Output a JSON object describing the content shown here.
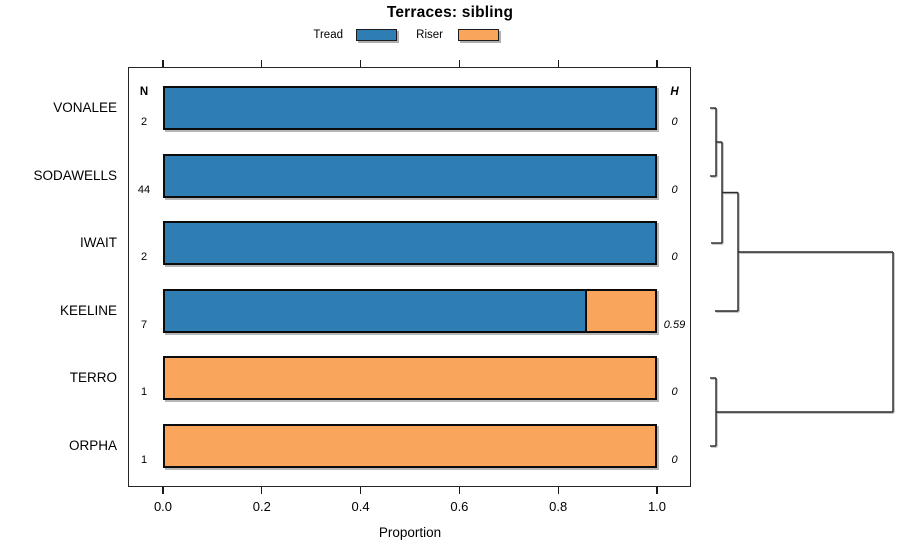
{
  "title": "Terraces: sibling",
  "legend": {
    "items": [
      {
        "label": "Tread",
        "color": "#2e7db3"
      },
      {
        "label": "Riser",
        "color": "#f9a65c"
      }
    ]
  },
  "columns": {
    "n_header": "N",
    "h_header": "H"
  },
  "x_axis": {
    "label": "Proportion",
    "tick_labels": [
      "0.0",
      "0.2",
      "0.4",
      "0.6",
      "0.8",
      "1.0"
    ],
    "tick_values": [
      0,
      0.2,
      0.4,
      0.6,
      0.8,
      1.0
    ],
    "range": [
      0,
      1
    ]
  },
  "chart_data": {
    "type": "bar",
    "orientation": "horizontal",
    "stacked": true,
    "title": "Terraces: sibling",
    "xlabel": "Proportion",
    "xlim": [
      0,
      1
    ],
    "grid": false,
    "series_names": [
      "Tread",
      "Riser"
    ],
    "categories": [
      "VONALEE",
      "SODAWELLS",
      "IWAIT",
      "KEELINE",
      "TERRO",
      "ORPHA"
    ],
    "rows": [
      {
        "label": "VONALEE",
        "n": "2",
        "tread": 1,
        "riser": 0,
        "h": "0"
      },
      {
        "label": "SODAWELLS",
        "n": "44",
        "tread": 1,
        "riser": 0,
        "h": "0"
      },
      {
        "label": "IWAIT",
        "n": "2",
        "tread": 1,
        "riser": 0,
        "h": "0"
      },
      {
        "label": "KEELINE",
        "n": "7",
        "tread": 0.857,
        "riser": 0.143,
        "h": "0.59"
      },
      {
        "label": "TERRO",
        "n": "1",
        "tread": 0,
        "riser": 1,
        "h": "0"
      },
      {
        "label": "ORPHA",
        "n": "1",
        "tread": 0,
        "riser": 1,
        "h": "0"
      }
    ],
    "colors": {
      "tread": "#2e7db3",
      "riser": "#f9a65c"
    },
    "dendrogram": {
      "hierarchy": "((((VONALEE,SODAWELLS),IWAIT),KEELINE),(TERRO,ORPHA))",
      "segments": [
        [
          710,
          108,
          716,
          108
        ],
        [
          710,
          176,
          716,
          176
        ],
        [
          716,
          108,
          716,
          176
        ],
        [
          716,
          142,
          722,
          142
        ],
        [
          722,
          142,
          722,
          243
        ],
        [
          711,
          243,
          722,
          243
        ],
        [
          722,
          192.5,
          738,
          192.5
        ],
        [
          738,
          192.5,
          738,
          311
        ],
        [
          715,
          311,
          738,
          311
        ],
        [
          738,
          252,
          893,
          252
        ],
        [
          710,
          378,
          716,
          378
        ],
        [
          710,
          446,
          716,
          446
        ],
        [
          716,
          378,
          716,
          446
        ],
        [
          716,
          412,
          893,
          412
        ],
        [
          893,
          252,
          893,
          412
        ]
      ]
    }
  }
}
